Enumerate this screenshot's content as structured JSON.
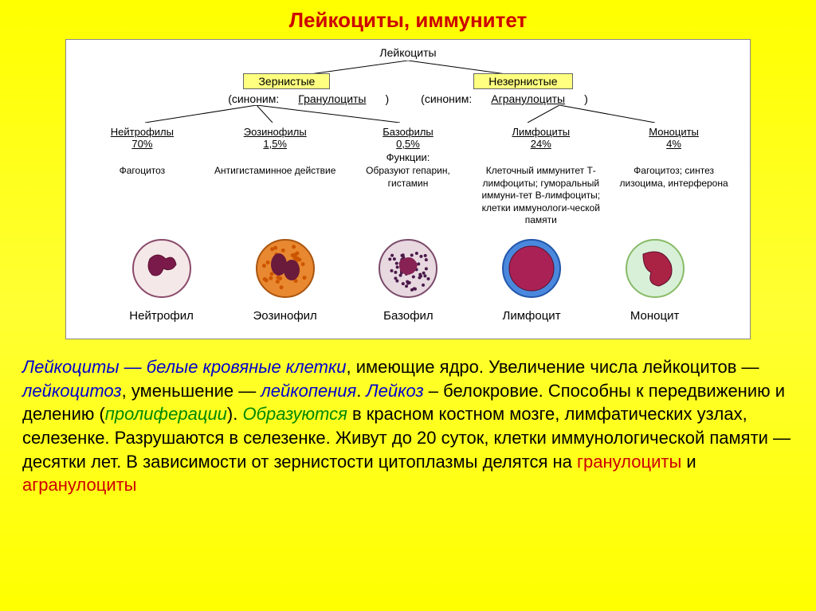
{
  "title": "Лейкоциты, иммунитет",
  "root": "Лейкоциты",
  "cat1": {
    "box": "Зернистые",
    "synonym_prefix": "(синоним:",
    "synonym": "Гранулоциты",
    "synonym_suffix": ")"
  },
  "cat2": {
    "box": "Незернистые",
    "synonym_prefix": "(синоним:",
    "synonym": "Агранулоциты",
    "synonym_suffix": ")"
  },
  "cells": [
    {
      "name": "Нейтрофилы",
      "pct": "70%",
      "func": "Фагоцитоз",
      "caption": "Нейтрофил",
      "style": {
        "outer": "#f5e8e8",
        "border": "#8a4a6a",
        "nucleus": "#7a1a4a",
        "granules": false,
        "orange_granules": false
      }
    },
    {
      "name": "Эозинофилы",
      "pct": "1,5%",
      "func": "Антигистаминное действие",
      "caption": "Эозинофил",
      "style": {
        "outer": "#e88830",
        "border": "#aa5510",
        "nucleus": "#6a1a3a",
        "granules": false,
        "orange_granules": true
      }
    },
    {
      "name": "Базофилы",
      "pct": "0,5%",
      "func": "Образуют гепарин, гистамин",
      "caption": "Базофил",
      "style": {
        "outer": "#e8d8e0",
        "border": "#7a4a6a",
        "nucleus": "#882255",
        "granules": true,
        "orange_granules": false
      }
    },
    {
      "name": "Лимфоциты",
      "pct": "24%",
      "func": "Клеточный иммунитет Т-лимфоциты; гуморальный иммуни-тет В-лимфоциты; клетки иммунологи-ческой памяти",
      "caption": "Лимфоцит",
      "style": {
        "outer": "#4a88dd",
        "border": "#2255aa",
        "nucleus": "#aa2255",
        "granules": false,
        "orange_granules": false,
        "big_nucleus": true
      }
    },
    {
      "name": "Моноциты",
      "pct": "4%",
      "func": "Фагоцитоз; синтез лизоцима, интерферона",
      "caption": "Моноцит",
      "style": {
        "outer": "#d8f0d8",
        "border": "#88bb66",
        "nucleus": "#aa2244",
        "granules": false,
        "orange_granules": false,
        "big_nucleus": true,
        "kidney": true
      }
    }
  ],
  "func_label": "Функции:",
  "desc": {
    "p1a": "Лейкоциты — белые кровяные клетки",
    "p1b": ", имеющие ядро. Увеличение числа лейкоцитов — ",
    "p1c": "лейкоцитоз",
    "p1d": ", уменьшение — ",
    "p1e": "лейкопения",
    "p1f": ". ",
    "p1g": "Лейкоз",
    "p1h": " – белокровие. Способны к передвижению и делению (",
    "p1i": "пролиферации",
    "p1j": "). ",
    "p2a": "Образуются",
    "p2b": " в красном костном мозге, лимфатических узлах, селезенке. Разрушаются в селезенке. Живут до 20 суток, клетки иммунологической памяти — десятки лет. В зависимости от зернистости цитоплазмы делятся на ",
    "p2c": "гранулоциты",
    "p2d": " и ",
    "p2e": "агранулоциты"
  },
  "colors": {
    "bg": "#ffff00",
    "title": "#cc0000",
    "panel": "#ffffff",
    "box_bg": "#ffff80"
  }
}
